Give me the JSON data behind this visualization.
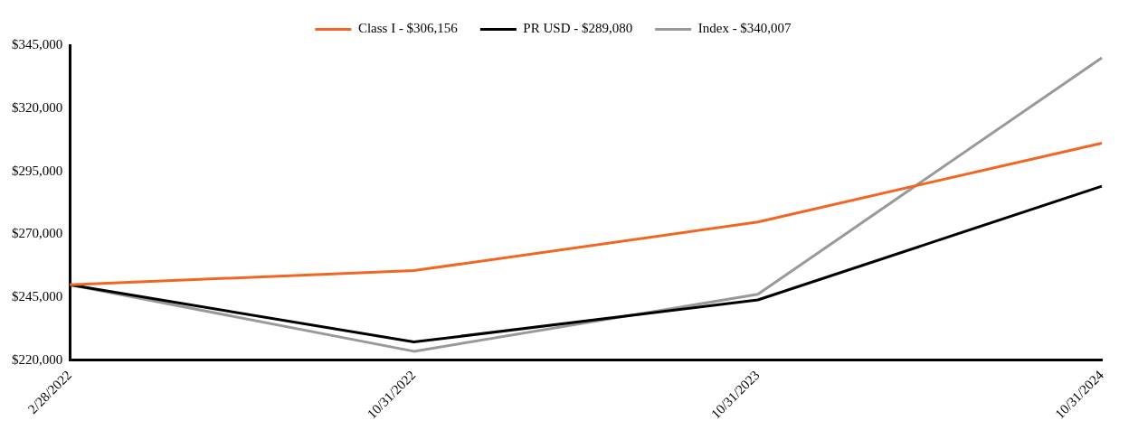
{
  "chart_data": {
    "type": "line",
    "categories": [
      "2/28/2022",
      "10/31/2022",
      "10/31/2023",
      "10/31/2024"
    ],
    "series": [
      {
        "name": "Class I - $306,156",
        "color": "#f26522",
        "values": [
          250000,
          255600,
          274900,
          306156
        ]
      },
      {
        "name": "PR USD - $289,080",
        "color": "#000000",
        "values": [
          250000,
          227300,
          244000,
          289080
        ]
      },
      {
        "name": "Index - $340,007",
        "color": "#999999",
        "values": [
          250000,
          223600,
          246200,
          340007
        ]
      }
    ],
    "ylim": [
      220000,
      345000
    ],
    "yticks": [
      {
        "value": 220000,
        "label": "$220,000"
      },
      {
        "value": 245000,
        "label": "$245,000"
      },
      {
        "value": 270000,
        "label": "$270,000"
      },
      {
        "value": 295000,
        "label": "$295,000"
      },
      {
        "value": 320000,
        "label": "$320,000"
      },
      {
        "value": 345000,
        "label": "$345,000"
      }
    ],
    "grid": false,
    "legend": "top",
    "marker": "none",
    "line_style": "solid"
  }
}
